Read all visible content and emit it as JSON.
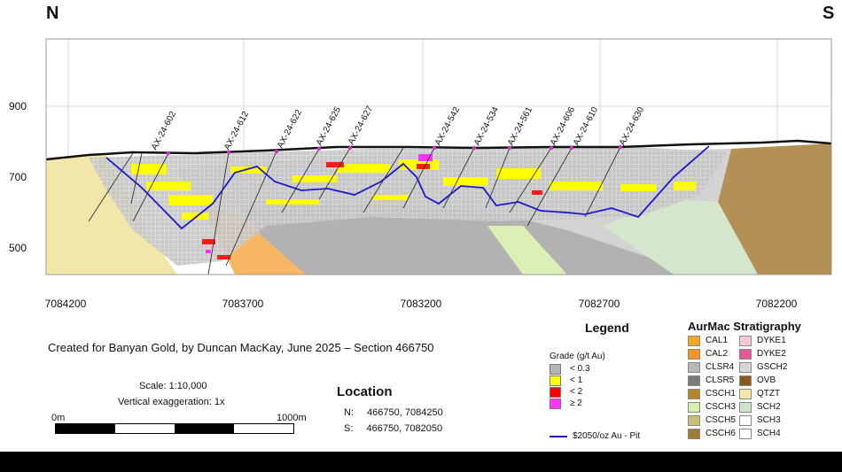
{
  "compass": {
    "north": "N",
    "south": "S"
  },
  "elevation_ticks": [
    "900",
    "700",
    "500"
  ],
  "northing_ticks": [
    "7084200",
    "7083700",
    "7083200",
    "7082700",
    "7082200"
  ],
  "drill_holes": [
    "AX-24-602",
    "AX-24-612",
    "AX-24-622",
    "AX-24-625",
    "AX-24-627",
    "AX-24-542",
    "AX-24-534",
    "AX-24-561",
    "AX-24-606",
    "AX-24-610",
    "AX-24-630"
  ],
  "credit": "Created for Banyan Gold, by Duncan MacKay, June 2025 – Section 466750",
  "scale": {
    "ratio": "Scale: 1:10,000",
    "exaggeration": "Vertical exaggeration: 1x",
    "start": "0m",
    "end": "1000m"
  },
  "location": {
    "title": "Location",
    "n_label": "N:",
    "n_value": "466750, 7084250",
    "s_label": "S:",
    "s_value": "466750, 7082050"
  },
  "legend": {
    "title": "Legend",
    "grade_title": "Grade (g/t Au)",
    "grades": [
      {
        "label": "< 0.3",
        "color": "#b4b4b4"
      },
      {
        "label": "< 1",
        "color": "#ffff00"
      },
      {
        "label": "< 2",
        "color": "#ff0000"
      },
      {
        "label": "≥ 2",
        "color": "#ff33ff"
      }
    ],
    "pit_label": "$2050/oz Au - Pit",
    "pit_color": "#1a1acc"
  },
  "stratigraphy": {
    "title": "AurMac Stratigraphy",
    "left": [
      {
        "label": "CAL1",
        "color": "#f5a623"
      },
      {
        "label": "CAL2",
        "color": "#f7941d"
      },
      {
        "label": "CLSR4",
        "color": "#b8b8b8"
      },
      {
        "label": "CLSR5",
        "color": "#7a7a7a"
      },
      {
        "label": "CSCH1",
        "color": "#b5862a"
      },
      {
        "label": "CSCH3",
        "color": "#d9efb0"
      },
      {
        "label": "CSCH5",
        "color": "#cdbd79"
      },
      {
        "label": "CSCH6",
        "color": "#a07d2e"
      }
    ],
    "right": [
      {
        "label": "DYKE1",
        "color": "#f7c7d6"
      },
      {
        "label": "DYKE2",
        "color": "#e8559a"
      },
      {
        "label": "GSCH2",
        "color": "#d6d6d6"
      },
      {
        "label": "OVB",
        "color": "#8a5a1c"
      },
      {
        "label": "QTZT",
        "color": "#f2e7a8"
      },
      {
        "label": "SCH2",
        "color": "#cfe3c6"
      },
      {
        "label": "SCH3",
        "color": "#ffffff"
      },
      {
        "label": "SCH4",
        "color": "#ffffff"
      }
    ]
  }
}
